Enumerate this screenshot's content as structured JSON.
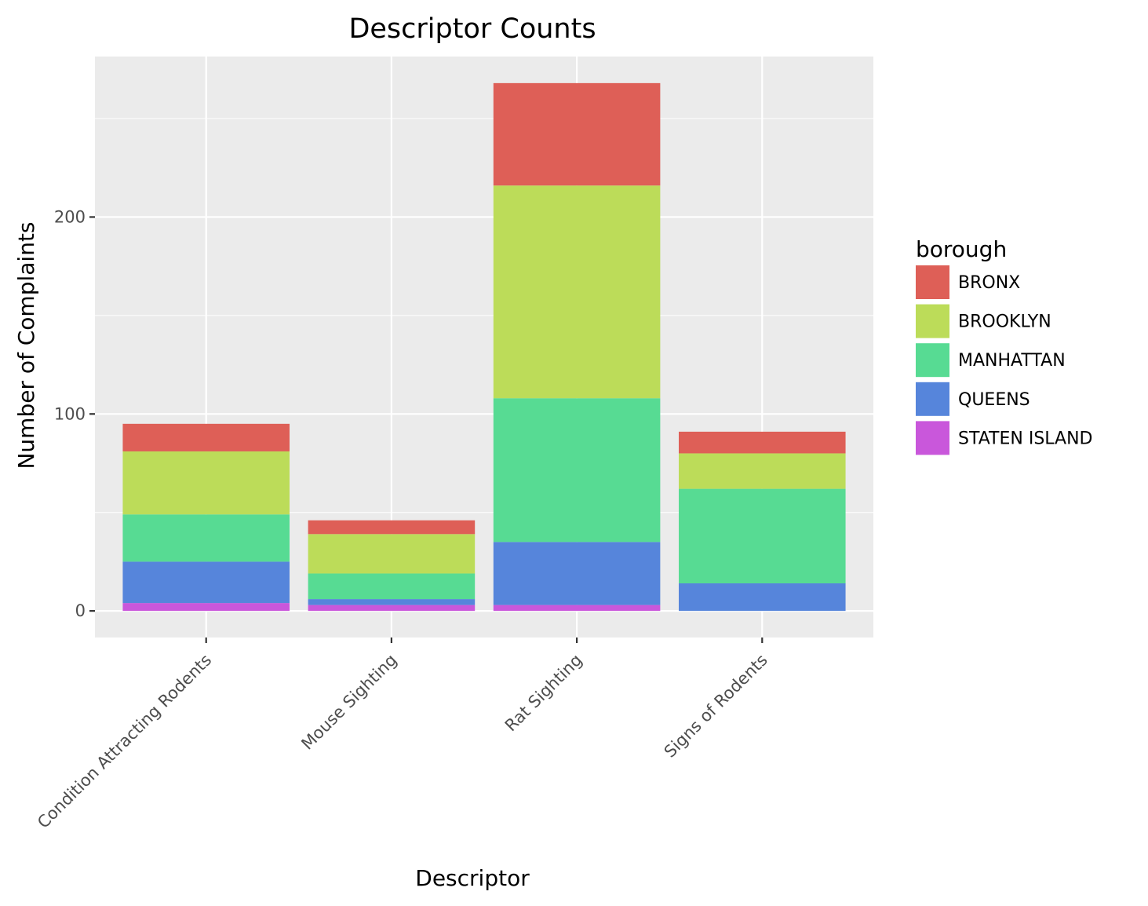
{
  "chart_data": {
    "type": "bar",
    "stacked": true,
    "title": "Descriptor Counts",
    "xlabel": "Descriptor",
    "ylabel": "Number of Complaints",
    "categories": [
      "Condition Attracting Rodents",
      "Mouse Sighting",
      "Rat Sighting",
      "Signs of Rodents"
    ],
    "ylim": [
      -13.5,
      281.5
    ],
    "yticks": [
      0,
      100,
      200
    ],
    "grid": true,
    "legend": {
      "title": "borough",
      "position": "right"
    },
    "series": [
      {
        "name": "BRONX",
        "color": "#DE5F57",
        "values": [
          14,
          7,
          52,
          11
        ]
      },
      {
        "name": "BROOKLYN",
        "color": "#BCDC59",
        "values": [
          32,
          20,
          108,
          18
        ]
      },
      {
        "name": "MANHATTAN",
        "color": "#57DB93",
        "values": [
          24,
          13,
          73,
          48
        ]
      },
      {
        "name": "QUEENS",
        "color": "#5685DB",
        "values": [
          21,
          3,
          32,
          14
        ]
      },
      {
        "name": "STATEN ISLAND",
        "color": "#C957DB",
        "values": [
          4,
          3,
          3,
          0
        ]
      }
    ],
    "stack_order_bottom_to_top": [
      "STATEN ISLAND",
      "QUEENS",
      "MANHATTAN",
      "BROOKLYN",
      "BRONX"
    ],
    "panel_background": "#EBEBEB",
    "grid_color": "#FFFFFF"
  }
}
